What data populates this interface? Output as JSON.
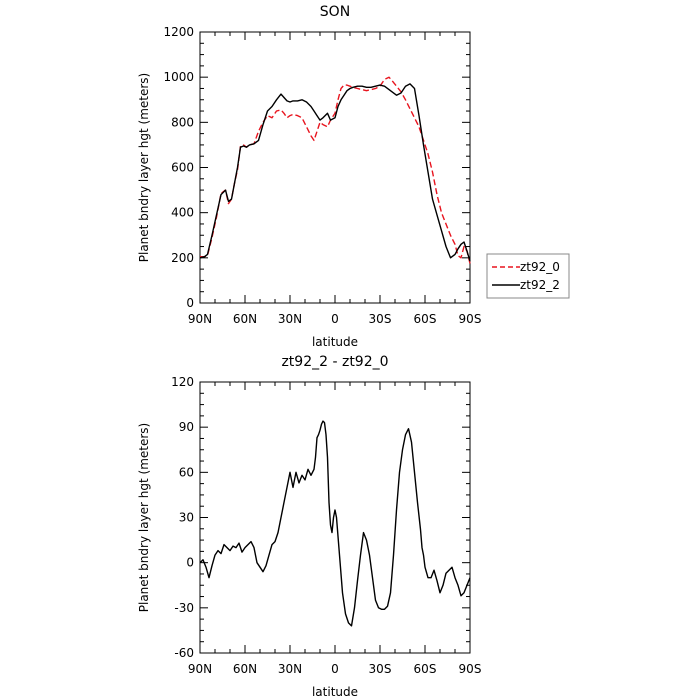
{
  "chart_data": [
    {
      "type": "line",
      "title": "SON",
      "xlabel": "latitude",
      "ylabel": "Planet bndry layer hgt (meters)",
      "xlim": [
        90,
        -90
      ],
      "ylim": [
        0,
        1200
      ],
      "xticks": [
        90,
        60,
        30,
        0,
        -30,
        -60,
        -90
      ],
      "xtick_labels": [
        "90N",
        "60N",
        "30N",
        "0",
        "30S",
        "60S",
        "90S"
      ],
      "yticks": [
        0,
        200,
        400,
        600,
        800,
        1000,
        1200
      ],
      "ytick_labels": [
        "0",
        "200",
        "400",
        "600",
        "800",
        "1000",
        "1200"
      ],
      "legend_placement": "right",
      "series": [
        {
          "name": "zt92_0",
          "color": "#e8141e",
          "dash": "dashed",
          "x": [
            90,
            87,
            85,
            82,
            79,
            76,
            73,
            71,
            69,
            67,
            65,
            63,
            61,
            59,
            57,
            54,
            51,
            48,
            45,
            42,
            39,
            36,
            34,
            32,
            30,
            28,
            25,
            22,
            19,
            16,
            14,
            12,
            10,
            8,
            5,
            3,
            0,
            -2,
            -4,
            -6,
            -8,
            -10,
            -12,
            -15,
            -18,
            -21,
            -24,
            -27,
            -30,
            -33,
            -36,
            -38,
            -41,
            -44,
            -47,
            -50,
            -53,
            -56,
            -59,
            -62,
            -65,
            -68,
            -71,
            -74,
            -77,
            -80,
            -82,
            -84,
            -86,
            -88,
            -90
          ],
          "y": [
            205,
            205,
            210,
            290,
            380,
            485,
            500,
            440,
            460,
            530,
            590,
            695,
            700,
            690,
            700,
            705,
            760,
            800,
            830,
            820,
            850,
            855,
            840,
            820,
            830,
            835,
            830,
            820,
            780,
            740,
            720,
            760,
            800,
            790,
            780,
            810,
            840,
            900,
            950,
            965,
            965,
            960,
            955,
            950,
            945,
            940,
            945,
            950,
            960,
            990,
            1000,
            985,
            960,
            935,
            900,
            860,
            820,
            780,
            720,
            660,
            580,
            480,
            400,
            350,
            300,
            260,
            210,
            200,
            250,
            230,
            175
          ]
        },
        {
          "name": "zt92_2",
          "color": "#000000",
          "dash": "solid",
          "x": [
            90,
            87,
            85,
            82,
            79,
            76,
            73,
            71,
            69,
            67,
            65,
            63,
            61,
            59,
            57,
            54,
            51,
            48,
            45,
            42,
            39,
            36,
            34,
            32,
            30,
            28,
            25,
            22,
            19,
            16,
            14,
            12,
            10,
            8,
            5,
            3,
            0,
            -2,
            -4,
            -6,
            -8,
            -10,
            -12,
            -15,
            -18,
            -21,
            -24,
            -27,
            -30,
            -33,
            -36,
            -38,
            -41,
            -44,
            -47,
            -50,
            -53,
            -56,
            -59,
            -62,
            -65,
            -68,
            -71,
            -74,
            -77,
            -80,
            -82,
            -84,
            -86,
            -88,
            -90
          ],
          "y": [
            200,
            205,
            215,
            300,
            390,
            480,
            500,
            450,
            460,
            530,
            600,
            690,
            695,
            690,
            700,
            705,
            720,
            790,
            850,
            870,
            900,
            925,
            910,
            895,
            890,
            895,
            895,
            900,
            890,
            870,
            850,
            830,
            810,
            820,
            840,
            810,
            820,
            870,
            900,
            920,
            940,
            950,
            955,
            960,
            960,
            955,
            955,
            960,
            965,
            960,
            945,
            935,
            920,
            930,
            960,
            970,
            950,
            830,
            700,
            580,
            460,
            390,
            320,
            250,
            200,
            215,
            240,
            260,
            270,
            230,
            185
          ]
        }
      ]
    },
    {
      "type": "line",
      "title": "zt92_2 - zt92_0",
      "xlabel": "latitude",
      "ylabel": "Planet bndry layer hgt (meters)",
      "xlim": [
        90,
        -90
      ],
      "ylim": [
        -60,
        120
      ],
      "xticks": [
        90,
        60,
        30,
        0,
        -30,
        -60,
        -90
      ],
      "xtick_labels": [
        "90N",
        "60N",
        "30N",
        "0",
        "30S",
        "60S",
        "90S"
      ],
      "yticks": [
        -60,
        -30,
        0,
        30,
        60,
        90,
        120
      ],
      "ytick_labels": [
        "-60",
        "-30",
        "0",
        "30",
        "60",
        "90",
        "120"
      ],
      "series": [
        {
          "color": "#000000",
          "dash": "solid",
          "x": [
            90,
            88,
            86,
            84,
            82,
            80,
            78,
            76,
            74,
            72,
            70,
            68,
            66,
            64,
            62,
            60,
            58,
            56,
            54,
            52,
            50,
            48,
            46,
            44,
            42,
            40,
            38,
            36,
            35,
            34,
            33,
            32,
            31,
            30,
            28,
            26,
            24,
            22,
            20,
            18,
            16,
            15,
            14,
            13,
            12,
            11,
            10,
            9,
            8,
            7,
            6,
            5,
            4,
            3,
            2,
            1,
            0,
            -1,
            -3,
            -5,
            -7,
            -9,
            -11,
            -13,
            -15,
            -17,
            -19,
            -21,
            -23,
            -25,
            -27,
            -29,
            -31,
            -33,
            -35,
            -37,
            -39,
            -41,
            -43,
            -45,
            -47,
            -49,
            -51,
            -53,
            -55,
            -57,
            -58,
            -59,
            -60,
            -62,
            -64,
            -66,
            -68,
            -70,
            -72,
            -74,
            -76,
            -78,
            -80,
            -82,
            -84,
            -86,
            -88,
            -90
          ],
          "y": [
            0,
            2,
            -3,
            -10,
            -2,
            5,
            8,
            6,
            12,
            10,
            8,
            11,
            10,
            13,
            7,
            10,
            12,
            14,
            10,
            0,
            -3,
            -6,
            -2,
            5,
            12,
            14,
            20,
            30,
            35,
            40,
            45,
            50,
            55,
            60,
            50,
            60,
            53,
            58,
            55,
            62,
            58,
            60,
            62,
            70,
            83,
            85,
            88,
            92,
            94,
            93,
            85,
            70,
            40,
            25,
            20,
            30,
            35,
            30,
            5,
            -20,
            -34,
            -40,
            -42,
            -30,
            -12,
            5,
            20,
            15,
            5,
            -10,
            -25,
            -30,
            -31,
            -31,
            -29,
            -20,
            5,
            35,
            60,
            75,
            85,
            89,
            80,
            60,
            40,
            22,
            10,
            5,
            -3,
            -10,
            -10,
            -5,
            -12,
            -20,
            -15,
            -7,
            -5,
            -3,
            -10,
            -15,
            -22,
            -20,
            -15,
            -10
          ]
        }
      ]
    }
  ]
}
